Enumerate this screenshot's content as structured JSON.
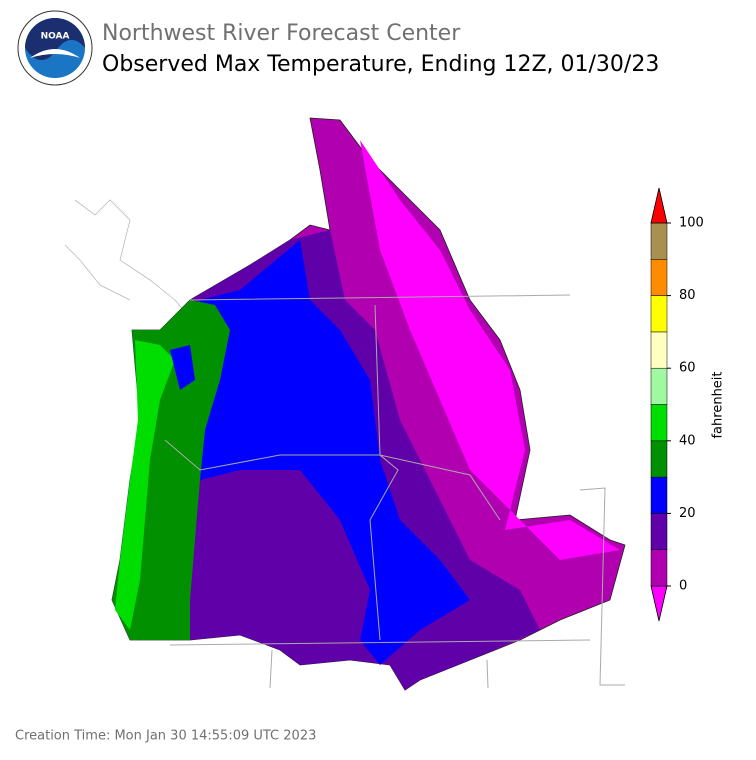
{
  "header": {
    "agency": "Northwest River Forecast Center",
    "title": "Observed Max Temperature, Ending 12Z, 01/30/23"
  },
  "colorbar": {
    "label": "fahrenheit",
    "bounds": [
      0,
      10,
      20,
      30,
      40,
      50,
      60,
      70,
      80,
      90,
      100
    ],
    "colors": [
      "#ff00ff",
      "#b000b0",
      "#6000a8",
      "#0000ff",
      "#009000",
      "#00dd00",
      "#a0f8a0",
      "#ffffc0",
      "#ffff00",
      "#ff8c00",
      "#a89050",
      "#ff0000"
    ],
    "ticks": [
      0,
      20,
      40,
      60,
      80,
      100
    ]
  },
  "footer": {
    "creation_time": "Creation Time: Mon Jan 30 14:55:09 UTC 2023"
  }
}
